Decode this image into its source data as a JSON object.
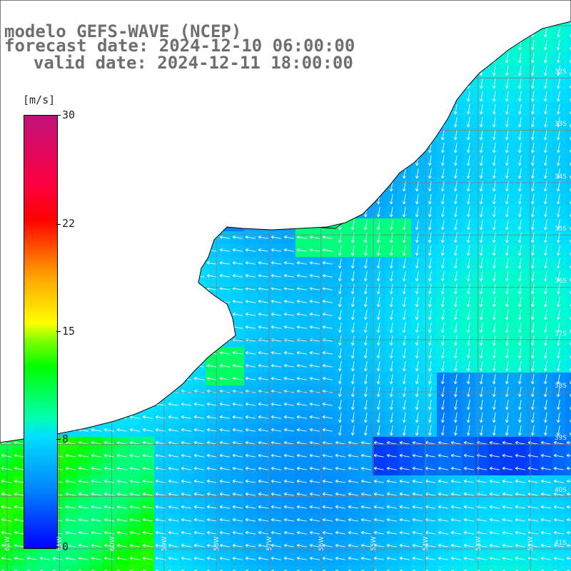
{
  "title": {
    "line1": "modelo GEFS-WAVE (NCEP)",
    "line2": "forecast date: 2024-12-10 06:00:00",
    "line3": "  valid date: 2024-12-11 18:00:00"
  },
  "colorbar": {
    "unit": "[m/s]",
    "ticks": [
      "30",
      "22",
      "15",
      "8",
      "0"
    ]
  },
  "map": {
    "variable": "wind speed and direction",
    "colors": {
      "land": "#ffffff",
      "coast": "#000000",
      "grid": "#7f7f7f",
      "arrow": "#ffffff"
    },
    "lat_labels": [
      "32S",
      "33S",
      "34S",
      "35S",
      "36S",
      "37S",
      "38S",
      "39S",
      "40S",
      "41S"
    ],
    "lon_labels": [
      "62W",
      "61W",
      "60W",
      "59W",
      "58W",
      "57W",
      "56W",
      "55W",
      "54W",
      "53W",
      "52W"
    ]
  }
}
